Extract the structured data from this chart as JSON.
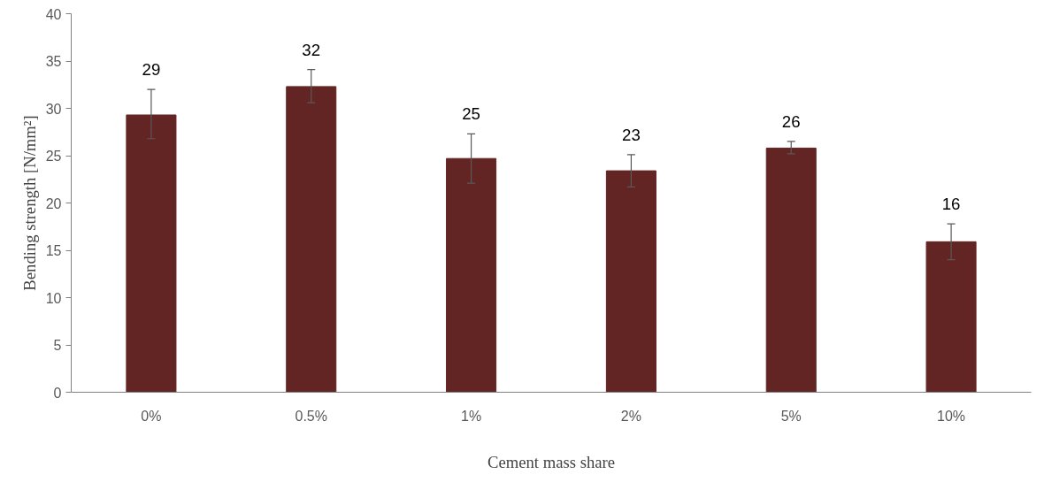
{
  "chart_data": {
    "type": "bar",
    "xlabel": "Cement mass share",
    "ylabel": "Bending strength [N/mm²]",
    "categories": [
      "0%",
      "0.5%",
      "1%",
      "2%",
      "5%",
      "10%"
    ],
    "values": [
      29.3,
      32.3,
      24.7,
      23.4,
      25.8,
      15.9
    ],
    "color": "#632523",
    "errors": [
      [
        26.8,
        32
      ],
      [
        30.6,
        34.1
      ],
      [
        22.1,
        27.3
      ],
      [
        21.7,
        25.1
      ],
      [
        25.2,
        26.5
      ],
      [
        14,
        17.8
      ]
    ],
    "value_labels": [
      "29",
      "32",
      "25",
      "23",
      "26",
      "16"
    ],
    "ylim": [
      0,
      40
    ],
    "yticks": [
      0,
      5,
      10,
      15,
      20,
      25,
      30,
      35,
      40
    ],
    "grid": false
  }
}
